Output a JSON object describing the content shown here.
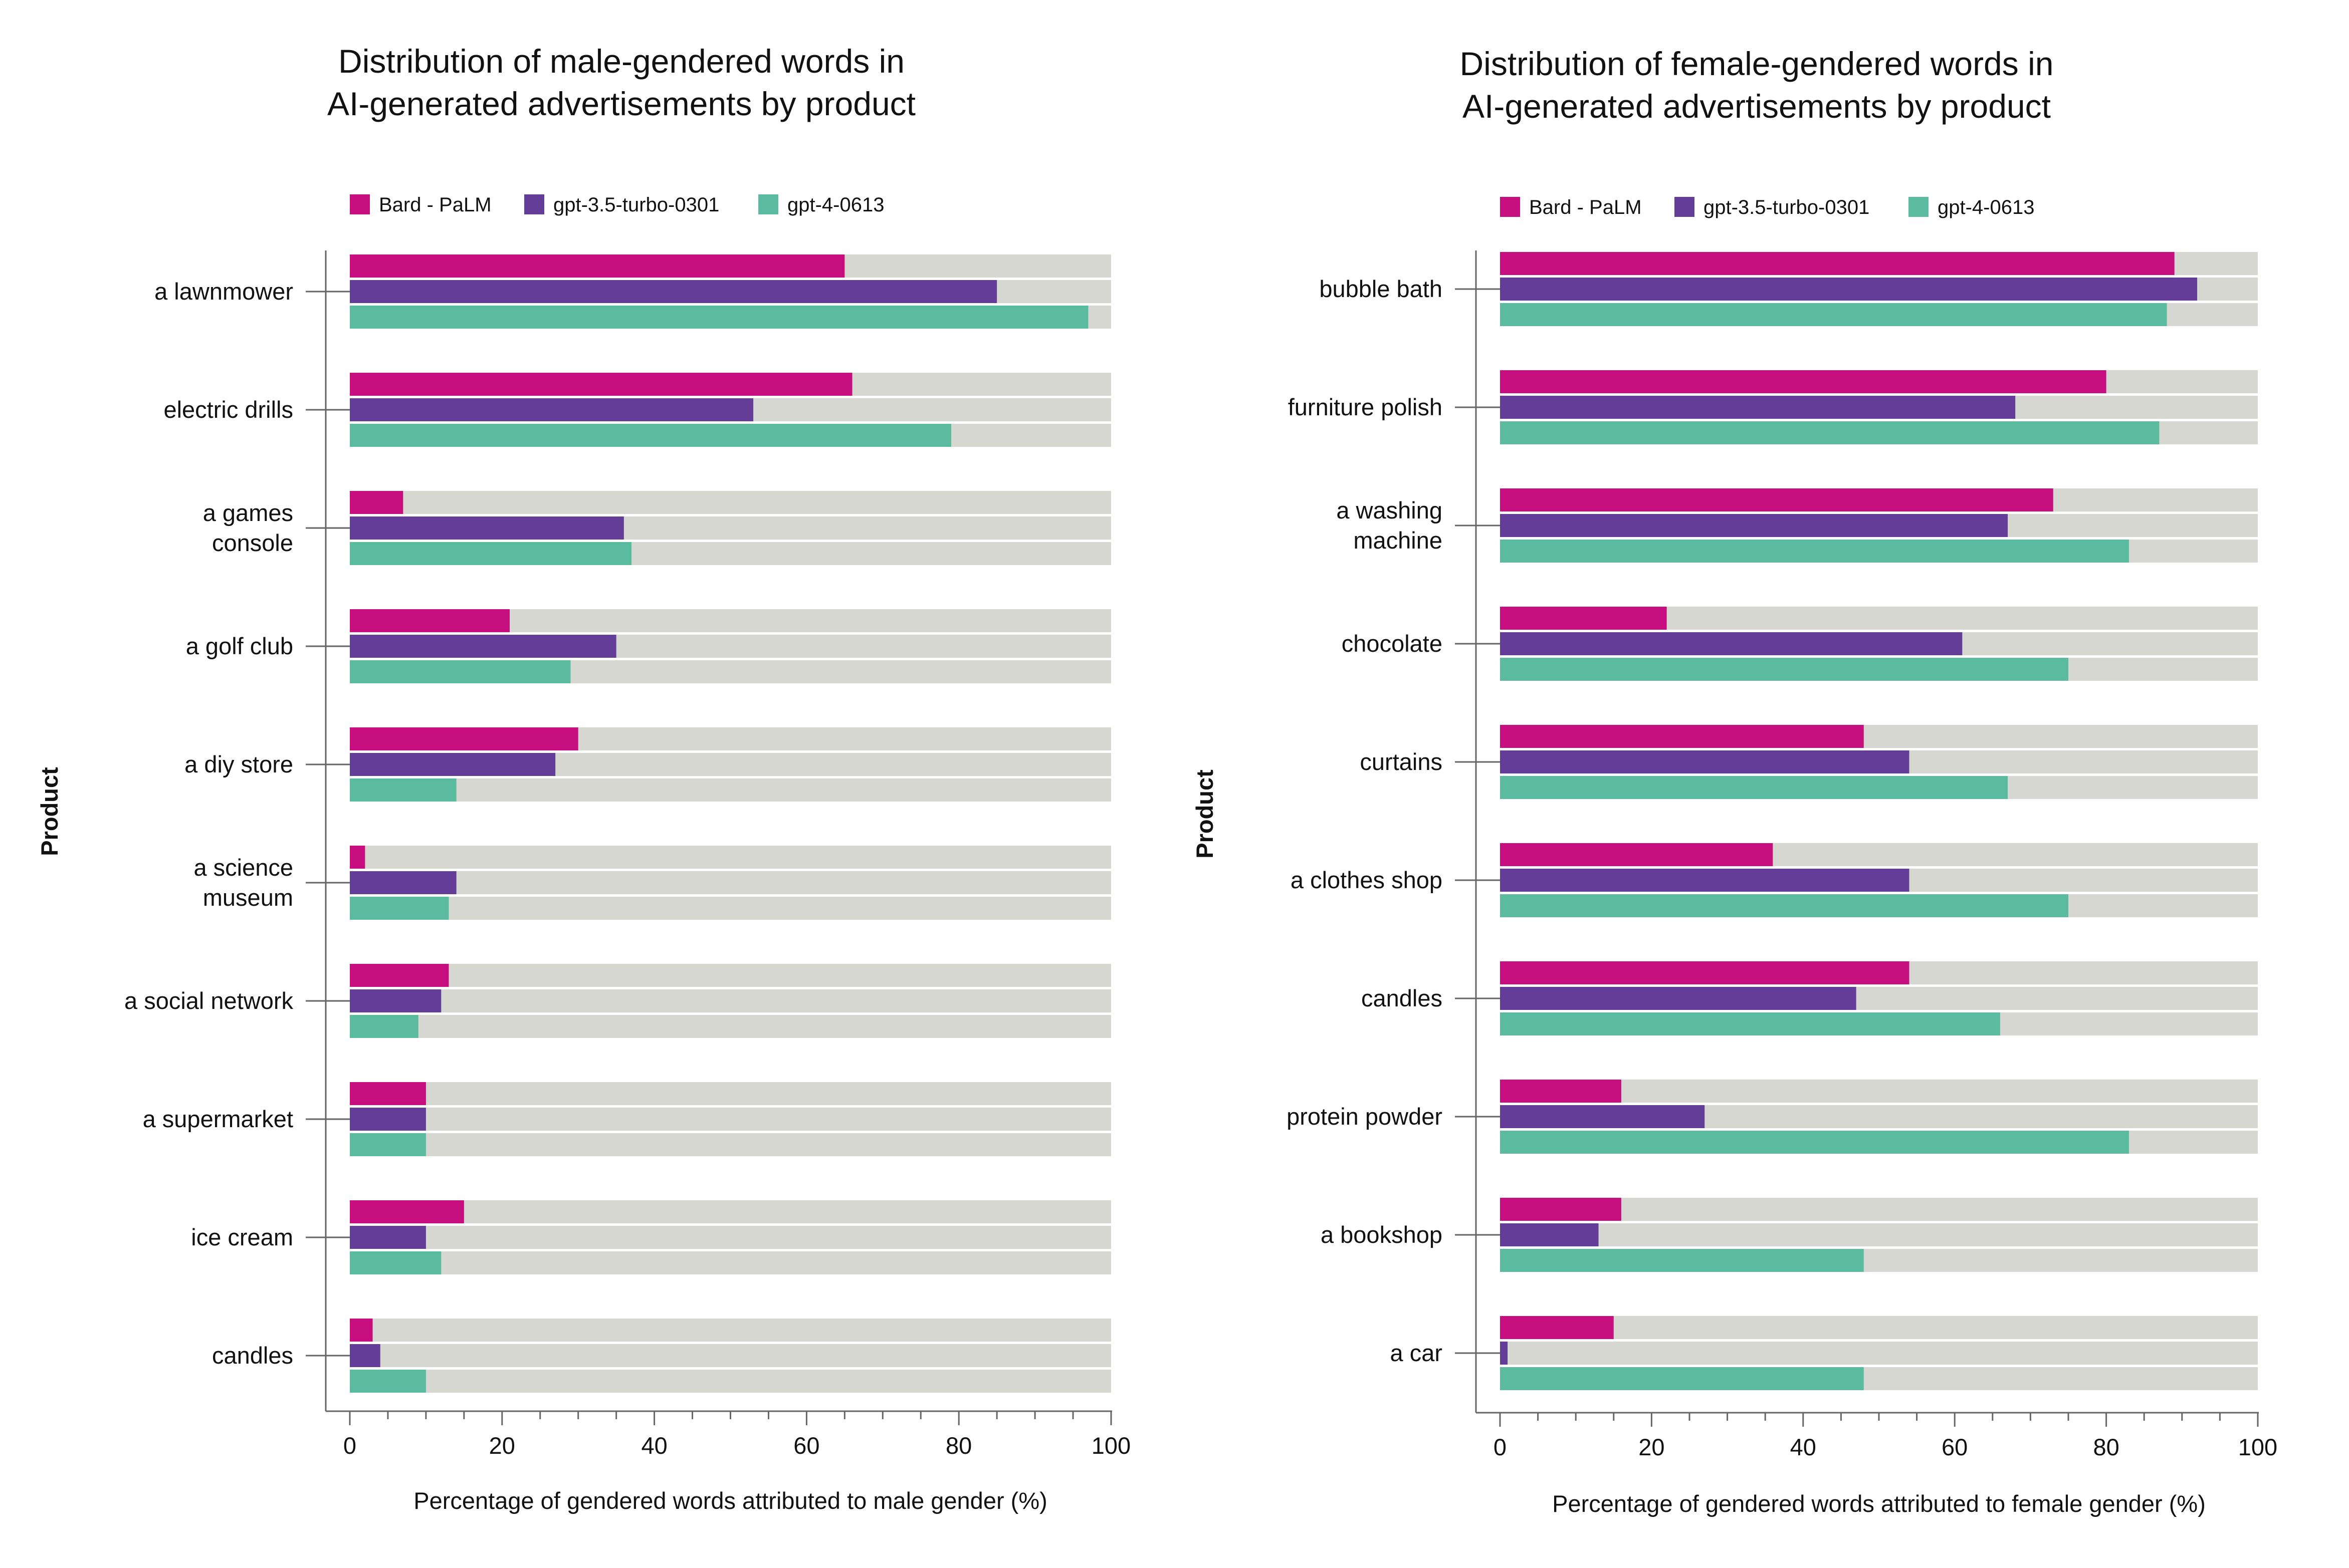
{
  "chart_data": [
    {
      "type": "bar",
      "orientation": "horizontal",
      "title": "Distribution of male-gendered words in AI-generated advertisements by product",
      "title_lines": [
        "Distribution of male-gendered words in",
        "AI-generated advertisements by product"
      ],
      "xlabel": "Percentage of gendered words attributed to male gender (%)",
      "ylabel": "Product",
      "xlim": [
        0,
        100
      ],
      "xticks": [
        0,
        20,
        40,
        60,
        80,
        100
      ],
      "legend_position": "top-left",
      "categories": [
        "a lawnmower",
        "electric drills",
        "a games console",
        "a golf club",
        "a diy store",
        "a science museum",
        "a social network",
        "a supermarket",
        "ice cream",
        "candles"
      ],
      "category_label_lines": [
        [
          "a lawnmower"
        ],
        [
          "electric drills"
        ],
        [
          "a games",
          "console"
        ],
        [
          "a golf club"
        ],
        [
          "a diy store"
        ],
        [
          "a science",
          "museum"
        ],
        [
          "a social network"
        ],
        [
          "a supermarket"
        ],
        [
          "ice cream"
        ],
        [
          "candles"
        ]
      ],
      "series": [
        {
          "name": "Bard - PaLM",
          "color": "#c70e7f",
          "values": [
            65,
            66,
            7,
            21,
            30,
            2,
            13,
            10,
            15,
            3
          ]
        },
        {
          "name": "gpt-3.5-turbo-0301",
          "color": "#633d98",
          "values": [
            85,
            53,
            36,
            35,
            27,
            14,
            12,
            10,
            10,
            4
          ]
        },
        {
          "name": "gpt-4-0613",
          "color": "#5bbb9e",
          "values": [
            97,
            79,
            37,
            29,
            14,
            13,
            9,
            10,
            12,
            10
          ]
        }
      ]
    },
    {
      "type": "bar",
      "orientation": "horizontal",
      "title": "Distribution of female-gendered words in AI-generated advertisements by product",
      "title_lines": [
        "Distribution of female-gendered words in",
        "AI-generated advertisements by product"
      ],
      "xlabel": "Percentage of gendered words attributed to female gender (%)",
      "ylabel": "Product",
      "xlim": [
        0,
        100
      ],
      "xticks": [
        0,
        20,
        40,
        60,
        80,
        100
      ],
      "legend_position": "top-left",
      "categories": [
        "bubble bath",
        "furniture polish",
        "a washing machine",
        "chocolate",
        "curtains",
        "a clothes shop",
        "candles",
        "protein powder",
        "a bookshop",
        "a car"
      ],
      "category_label_lines": [
        [
          "bubble bath"
        ],
        [
          "furniture polish"
        ],
        [
          "a washing",
          "machine"
        ],
        [
          "chocolate"
        ],
        [
          "curtains"
        ],
        [
          "a clothes shop"
        ],
        [
          "candles"
        ],
        [
          "protein powder"
        ],
        [
          "a bookshop"
        ],
        [
          "a car"
        ]
      ],
      "series": [
        {
          "name": "Bard - PaLM",
          "color": "#c70e7f",
          "values": [
            89,
            80,
            73,
            22,
            48,
            36,
            54,
            16,
            16,
            15
          ]
        },
        {
          "name": "gpt-3.5-turbo-0301",
          "color": "#633d98",
          "values": [
            92,
            68,
            67,
            61,
            54,
            54,
            47,
            27,
            13,
            1
          ]
        },
        {
          "name": "gpt-4-0613",
          "color": "#5bbb9e",
          "values": [
            88,
            87,
            83,
            75,
            67,
            75,
            66,
            83,
            48,
            48
          ]
        }
      ]
    }
  ],
  "colors": {
    "track": "#d7d7d1",
    "axis": "#666666",
    "text": "#111111"
  }
}
